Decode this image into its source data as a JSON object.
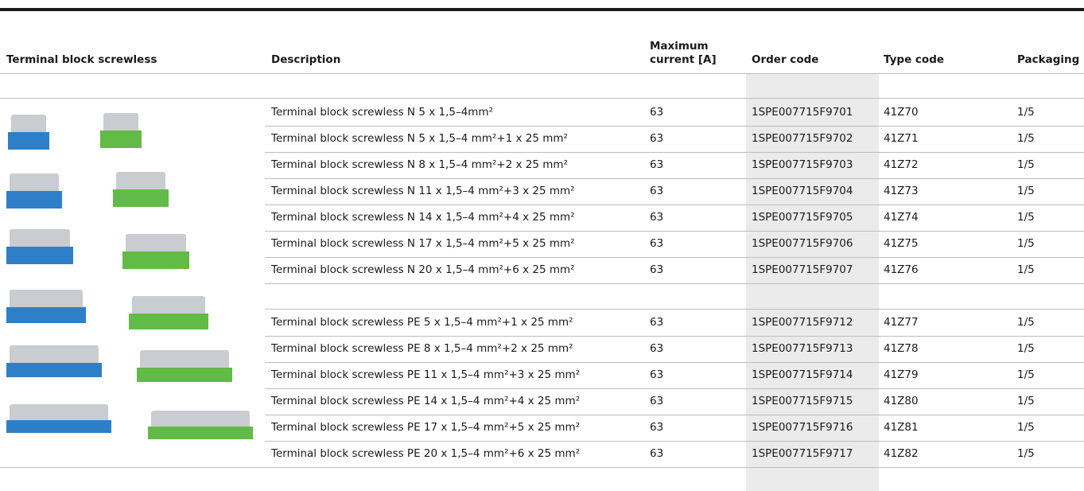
{
  "table": {
    "header": [
      "Terminal block screwless",
      "Description",
      "Maximum current [A]",
      "Order code",
      "Type code",
      "Packaging"
    ],
    "groups": [
      {
        "rows": [
          [
            "Terminal block screwless N 5 x 1,5–4mm²",
            "63",
            "1SPE007715F9701",
            "41Z70",
            "1/5"
          ],
          [
            "Terminal block screwless N 5 x 1,5–4 mm²+1 x 25 mm²",
            "63",
            "1SPE007715F9702",
            "41Z71",
            "1/5"
          ],
          [
            "Terminal block screwless N 8 x 1,5–4 mm²+2 x 25 mm²",
            "63",
            "1SPE007715F9703",
            "41Z72",
            "1/5"
          ],
          [
            "Terminal block screwless N 11 x 1,5–4 mm²+3 x 25 mm²",
            "63",
            "1SPE007715F9704",
            "41Z73",
            "1/5"
          ],
          [
            "Terminal block screwless N 14 x 1,5–4 mm²+4 x 25 mm²",
            "63",
            "1SPE007715F9705",
            "41Z74",
            "1/5"
          ],
          [
            "Terminal block screwless N 17 x 1,5–4 mm²+5 x 25 mm²",
            "63",
            "1SPE007715F9706",
            "41Z75",
            "1/5"
          ],
          [
            "Terminal block screwless N 20 x 1,5–4 mm²+6 x 25 mm²",
            "63",
            "1SPE007715F9707",
            "41Z76",
            "1/5"
          ]
        ]
      },
      {
        "rows": [
          [
            "Terminal block screwless PE 5 x 1,5–4 mm²+1 x 25 mm²",
            "63",
            "1SPE007715F9712",
            "41Z77",
            "1/5"
          ],
          [
            "Terminal block screwless PE 8 x 1,5–4 mm²+2 x 25 mm²",
            "63",
            "1SPE007715F9713",
            "41Z78",
            "1/5"
          ],
          [
            "Terminal block screwless PE 11 x 1,5–4 mm²+3 x 25 mm²",
            "63",
            "1SPE007715F9714",
            "41Z79",
            "1/5"
          ],
          [
            "Terminal block screwless PE 14 x 1,5–4 mm²+4 x 25 mm²",
            "63",
            "1SPE007715F9715",
            "41Z80",
            "1/5"
          ],
          [
            "Terminal block screwless PE 17 x 1,5–4 mm²+5 x 25 mm²",
            "63",
            "1SPE007715F9716",
            "41Z81",
            "1/5"
          ],
          [
            "Terminal block screwless PE 20 x 1,5–4 mm²+6 x 25 mm²",
            "63",
            "1SPE007715F9717",
            "41Z82",
            "1/5"
          ]
        ]
      }
    ]
  }
}
